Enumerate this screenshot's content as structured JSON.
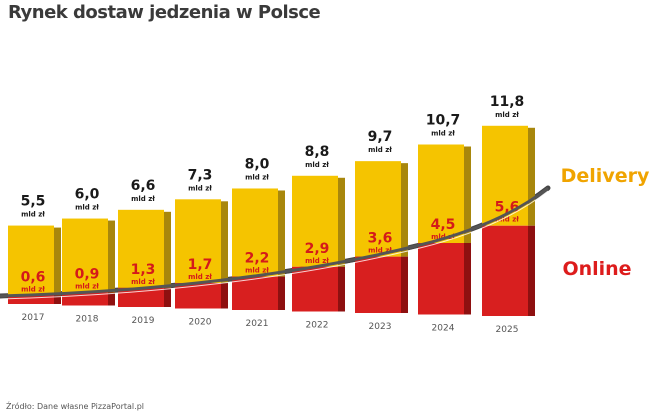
{
  "chart_data": {
    "type": "bar",
    "stacked": true,
    "title": "Rynek dostaw jedzenia w Polsce",
    "categories": [
      "2017",
      "2018",
      "2019",
      "2020",
      "2021",
      "2022",
      "2023",
      "2024",
      "2025"
    ],
    "unit": "mld zł",
    "series": [
      {
        "name": "Delivery",
        "total_values": [
          5.5,
          6.0,
          6.6,
          7.3,
          8.0,
          8.8,
          9.7,
          10.7,
          11.8
        ],
        "labels": [
          "5,5",
          "6,0",
          "6,6",
          "7,3",
          "8,0",
          "8,8",
          "9,7",
          "10,7",
          "11,8"
        ],
        "color": "#f5c400"
      },
      {
        "name": "Online",
        "values": [
          0.6,
          0.9,
          1.3,
          1.7,
          2.2,
          2.9,
          3.6,
          4.5,
          5.6
        ],
        "labels": [
          "0,6",
          "0,9",
          "1,3",
          "1,7",
          "2,2",
          "2,9",
          "3,6",
          "4,5",
          "5,6"
        ],
        "color": "#d81f1f"
      }
    ],
    "legend_colors": {
      "Delivery": "#f0a400",
      "Online": "#dd1c1c"
    },
    "grid": false
  },
  "source": "Źródło: Dane własne PizzaPortal.pl"
}
